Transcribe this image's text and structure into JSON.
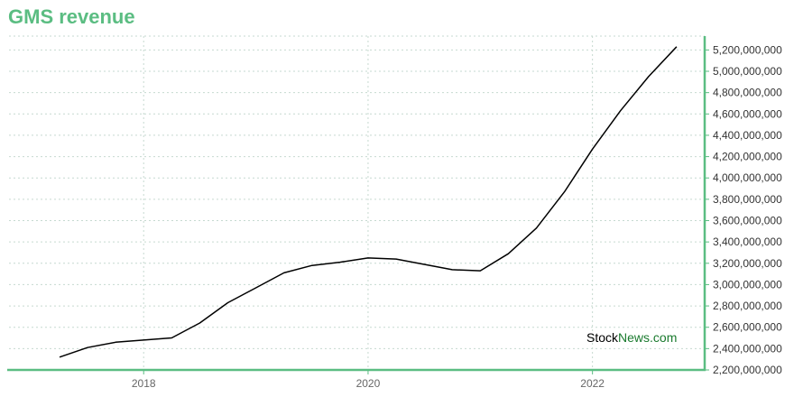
{
  "chart_data": {
    "type": "line",
    "title": "GMS revenue",
    "x_tick_labels": [
      "2018",
      "2020",
      "2022"
    ],
    "x_ticks": [
      2018,
      2020,
      2022
    ],
    "y_tick_labels": [
      "2,200,000,000",
      "2,400,000,000",
      "2,600,000,000",
      "2,800,000,000",
      "3,000,000,000",
      "3,200,000,000",
      "3,400,000,000",
      "3,600,000,000",
      "3,800,000,000",
      "4,000,000,000",
      "4,200,000,000",
      "4,400,000,000",
      "4,600,000,000",
      "4,800,000,000",
      "5,000,000,000",
      "5,200,000,000"
    ],
    "y_ticks": [
      2200000000,
      2400000000,
      2600000000,
      2800000000,
      3000000000,
      3200000000,
      3400000000,
      3600000000,
      3800000000,
      4000000000,
      4200000000,
      4400000000,
      4600000000,
      4800000000,
      5000000000,
      5200000000
    ],
    "xlim": [
      2016.8,
      2023.0
    ],
    "ylim": [
      2200000000,
      5330000000
    ],
    "grid": true,
    "line_color": "#000000",
    "axis_color": "#5bbd82",
    "series": [
      {
        "x": [
          2017.25,
          2017.5,
          2017.75,
          2018.0,
          2018.25,
          2018.5,
          2018.75,
          2019.0,
          2019.25,
          2019.5,
          2019.75,
          2020.0,
          2020.25,
          2020.5,
          2020.75,
          2021.0,
          2021.25,
          2021.5,
          2021.75,
          2022.0,
          2022.25,
          2022.5,
          2022.75
        ],
        "values": [
          2320000000,
          2410000000,
          2460000000,
          2480000000,
          2500000000,
          2640000000,
          2830000000,
          2970000000,
          3110000000,
          3180000000,
          3210000000,
          3250000000,
          3240000000,
          3190000000,
          3140000000,
          3130000000,
          3290000000,
          3530000000,
          3870000000,
          4270000000,
          4630000000,
          4950000000,
          5230000000
        ]
      }
    ]
  },
  "watermark": {
    "part1": "Stock",
    "part2": "News",
    "part3": ".com",
    "color1": "#000000",
    "color2": "#1a7a2e"
  }
}
